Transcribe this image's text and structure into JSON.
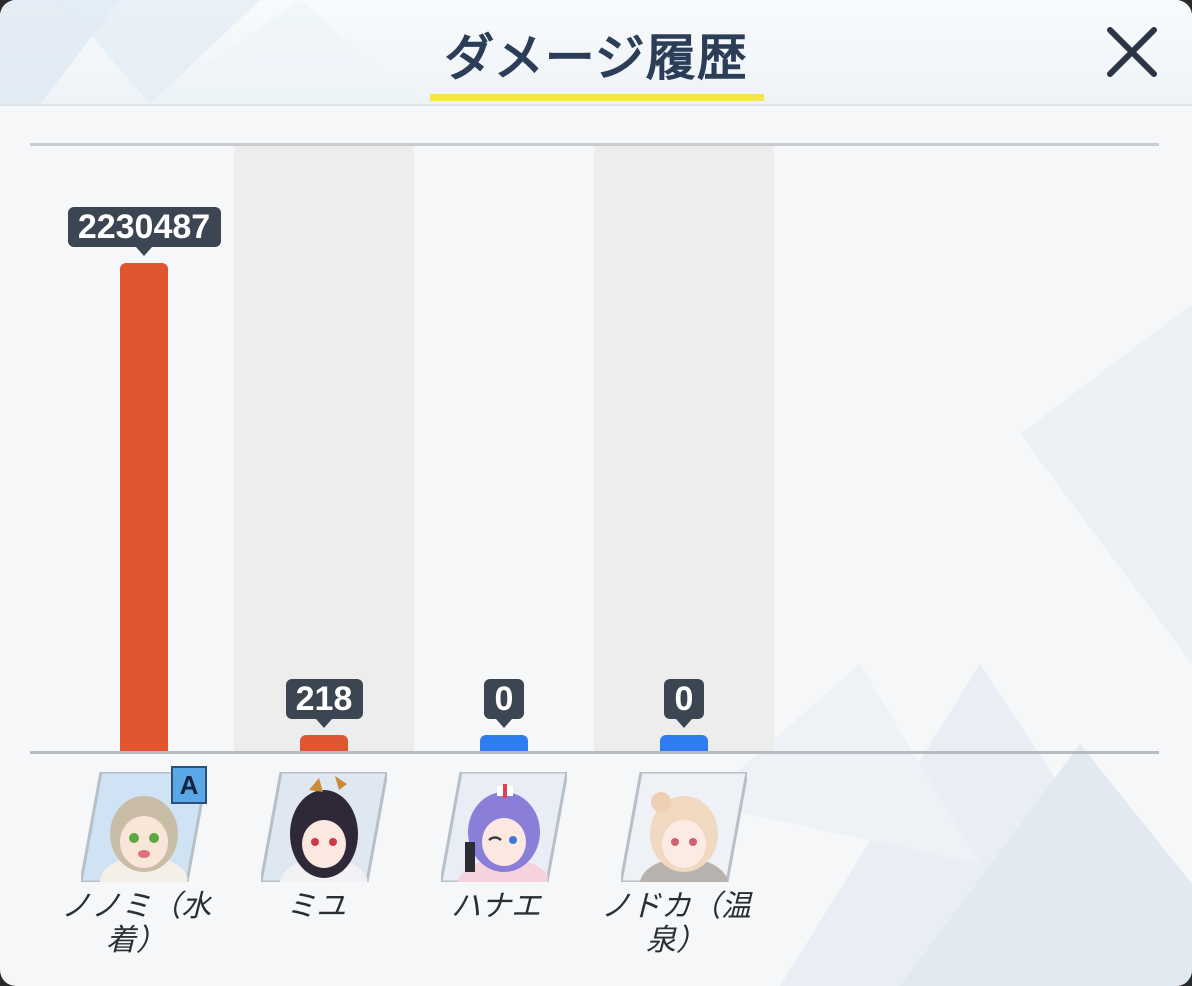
{
  "title": "ダメージ履歴",
  "close_icon": "close-x-icon",
  "colors": {
    "damage_bar": "#e05631",
    "zero_bar": "#2f7bf0",
    "tooltip_bg": "#3c4652",
    "title_accent": "#f5e44a"
  },
  "chart_data": {
    "type": "bar",
    "categories": [
      "ノノミ（水着）",
      "ミユ",
      "ハナエ",
      "ノドカ（温泉）"
    ],
    "values": [
      2230487,
      218,
      0,
      0
    ],
    "value_labels": [
      "2230487",
      "218",
      "0",
      "0"
    ],
    "bar_colors": [
      "#e05631",
      "#e05631",
      "#2f7bf0",
      "#2f7bf0"
    ],
    "title": "",
    "xlabel": "",
    "ylabel": "",
    "ylim": [
      0,
      2230487
    ],
    "grid": false
  },
  "characters": [
    {
      "name": "ノノミ（水着）",
      "badge": "A",
      "portrait_icon": "character-portrait-icon"
    },
    {
      "name": "ミユ",
      "badge": "",
      "portrait_icon": "character-portrait-icon"
    },
    {
      "name": "ハナエ",
      "badge": "",
      "portrait_icon": "character-portrait-icon"
    },
    {
      "name": "ノドカ（温泉）",
      "badge": "",
      "portrait_icon": "character-portrait-icon"
    }
  ]
}
